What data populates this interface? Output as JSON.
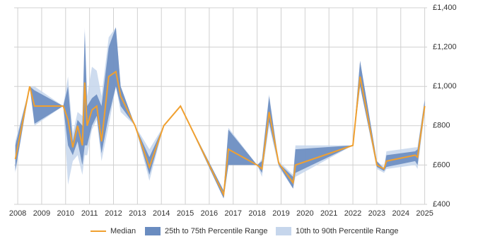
{
  "chart_data": {
    "type": "line",
    "x": [
      2007.9,
      2008.5,
      2008.7,
      2009.9,
      2010.1,
      2010.3,
      2010.5,
      2010.7,
      2010.8,
      2010.9,
      2011.1,
      2011.3,
      2011.5,
      2011.8,
      2012.1,
      2012.3,
      2012.9,
      2013.5,
      2014.1,
      2014.8,
      2016.6,
      2016.8,
      2018.0,
      2018.2,
      2018.5,
      2018.9,
      2019.5,
      2019.6,
      2022.0,
      2022.3,
      2023.0,
      2023.3,
      2023.4,
      2024.6,
      2024.7,
      2025.0
    ],
    "series": [
      {
        "name": "Median",
        "color": "#f0a030",
        "values": [
          630,
          1000,
          900,
          900,
          830,
          690,
          800,
          700,
          1020,
          800,
          880,
          900,
          720,
          1050,
          1075,
          950,
          800,
          590,
          800,
          900,
          450,
          680,
          600,
          580,
          870,
          610,
          510,
          600,
          700,
          1050,
          600,
          580,
          620,
          650,
          640,
          900
        ]
      },
      {
        "name": "25th to 75th Percentile Range",
        "color": "#6a8cc0",
        "low": [
          570,
          1000,
          810,
          900,
          700,
          650,
          720,
          600,
          700,
          700,
          800,
          850,
          660,
          850,
          1000,
          900,
          800,
          550,
          800,
          900,
          430,
          600,
          600,
          560,
          820,
          600,
          480,
          560,
          700,
          1000,
          590,
          570,
          590,
          620,
          600,
          880
        ],
        "high": [
          700,
          1000,
          980,
          900,
          1000,
          720,
          830,
          800,
          1280,
          900,
          940,
          960,
          900,
          1200,
          1300,
          1000,
          800,
          640,
          800,
          900,
          470,
          780,
          600,
          620,
          950,
          610,
          540,
          680,
          700,
          1130,
          620,
          580,
          650,
          670,
          680,
          930
        ]
      },
      {
        "name": "10th to 90th Percentile Range",
        "color": "#c6d6ec",
        "low": [
          560,
          1000,
          800,
          900,
          500,
          620,
          650,
          550,
          650,
          650,
          780,
          830,
          620,
          800,
          1000,
          870,
          800,
          520,
          800,
          900,
          430,
          600,
          600,
          540,
          800,
          590,
          480,
          540,
          700,
          1000,
          580,
          560,
          580,
          600,
          580,
          870
        ],
        "high": [
          720,
          1000,
          1000,
          900,
          1050,
          760,
          870,
          850,
          1300,
          950,
          1100,
          1080,
          950,
          1250,
          1300,
          1000,
          800,
          680,
          800,
          900,
          470,
          790,
          600,
          630,
          960,
          620,
          550,
          700,
          700,
          1130,
          620,
          590,
          670,
          690,
          690,
          940
        ]
      }
    ],
    "xlim": [
      2007.85,
      2025.1
    ],
    "xticks": [
      2008,
      2009,
      2010,
      2011,
      2012,
      2013,
      2014,
      2015,
      2016,
      2017,
      2018,
      2019,
      2020,
      2021,
      2022,
      2023,
      2024,
      2025
    ],
    "ylim": [
      400,
      1400
    ],
    "yticks": [
      {
        "value": 400,
        "label": "£400"
      },
      {
        "value": 600,
        "label": "£600"
      },
      {
        "value": 800,
        "label": "£800"
      },
      {
        "value": 1000,
        "label": "£1,000"
      },
      {
        "value": 1200,
        "label": "£1,200"
      },
      {
        "value": 1400,
        "label": "£1,400"
      }
    ],
    "grid": true,
    "legend": "bottom"
  }
}
